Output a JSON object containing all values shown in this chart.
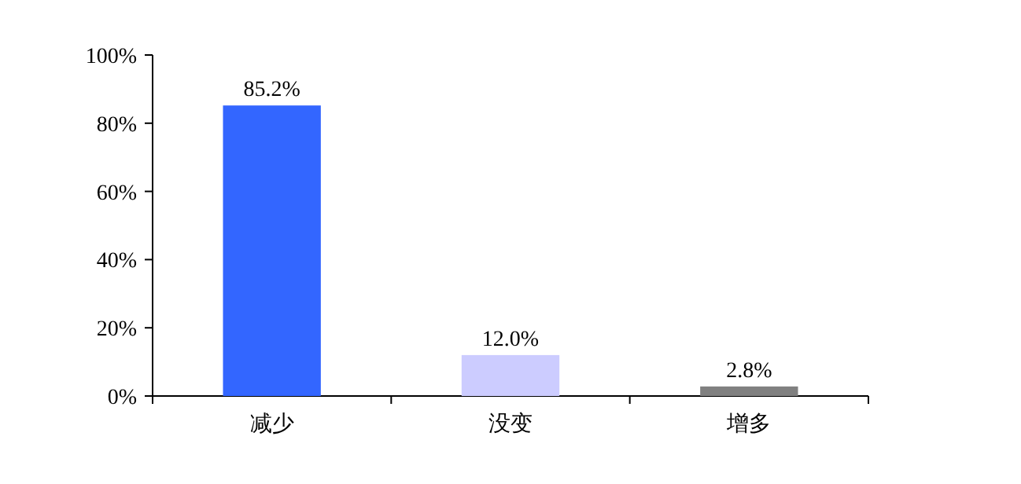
{
  "chart_data": {
    "type": "bar",
    "categories": [
      "减少",
      "没变",
      "增多"
    ],
    "values": [
      85.2,
      12.0,
      2.8
    ],
    "value_labels": [
      "85.2%",
      "12.0%",
      "2.8%"
    ],
    "colors": [
      "#3366ff",
      "#ccccff",
      "#808080"
    ],
    "ylim": [
      0,
      100
    ],
    "yticks": [
      {
        "value": 0,
        "label": "0%"
      },
      {
        "value": 20,
        "label": "20%"
      },
      {
        "value": 40,
        "label": "40%"
      },
      {
        "value": 60,
        "label": "60%"
      },
      {
        "value": 80,
        "label": "80%"
      },
      {
        "value": 100,
        "label": "100%"
      }
    ]
  }
}
